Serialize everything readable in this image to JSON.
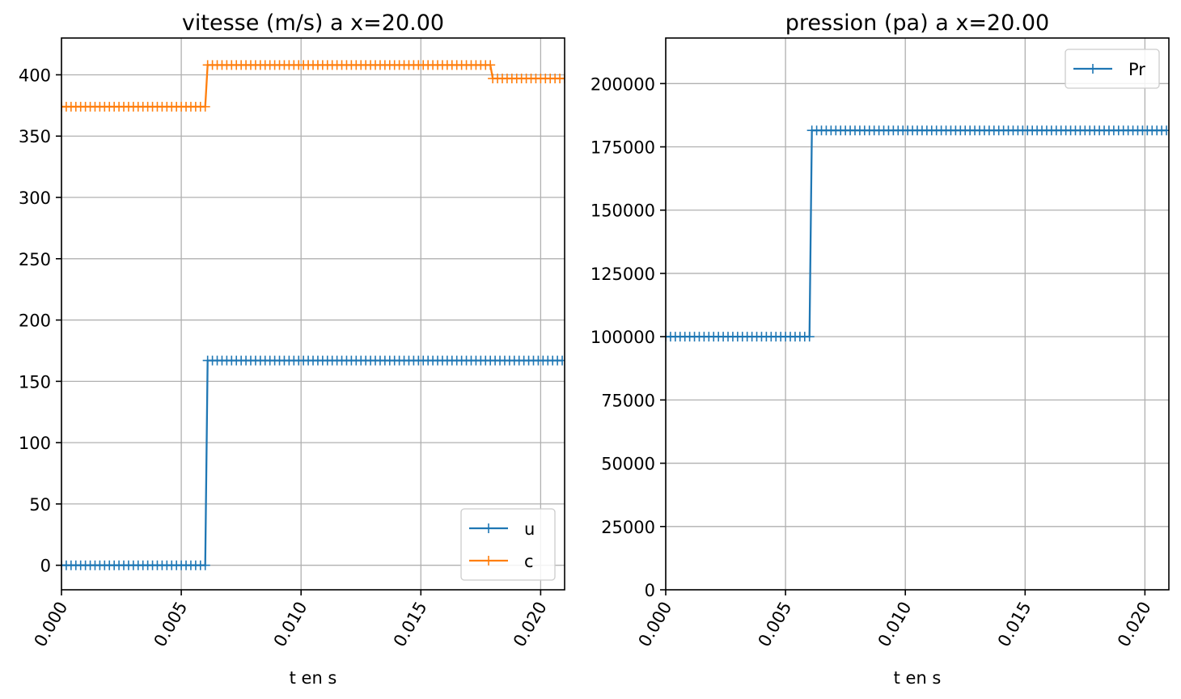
{
  "colors": {
    "u": "#1f77b4",
    "c": "#ff7f0e",
    "Pr": "#1f77b4",
    "grid": "#b0b0b0"
  },
  "chart_data": [
    {
      "type": "line",
      "title": "vitesse (m/s) a x=20.00",
      "xlabel": "t en s",
      "ylabel": "",
      "xlim": [
        0,
        0.021
      ],
      "ylim": [
        -20,
        430
      ],
      "xticks": [
        "0.000",
        "0.005",
        "0.010",
        "0.015",
        "0.020"
      ],
      "xtick_values": [
        0,
        0.005,
        0.01,
        0.015,
        0.02
      ],
      "yticks": [
        "0",
        "50",
        "100",
        "150",
        "200",
        "250",
        "300",
        "350",
        "400"
      ],
      "ytick_values": [
        0,
        50,
        100,
        150,
        200,
        250,
        300,
        350,
        400
      ],
      "grid": true,
      "legend": "lower-right",
      "marker": "+",
      "series": [
        {
          "name": "u",
          "color_key": "u",
          "segments": [
            {
              "t_start": 0.0,
              "t_end": 0.006,
              "value": 0
            },
            {
              "t_start": 0.0061,
              "t_end": 0.021,
              "value": 167
            }
          ]
        },
        {
          "name": "c",
          "color_key": "c",
          "segments": [
            {
              "t_start": 0.0,
              "t_end": 0.006,
              "value": 374
            },
            {
              "t_start": 0.0061,
              "t_end": 0.0179,
              "value": 408
            },
            {
              "t_start": 0.018,
              "t_end": 0.021,
              "value": 397
            }
          ]
        }
      ]
    },
    {
      "type": "line",
      "title": "pression (pa) a x=20.00",
      "xlabel": "t en s",
      "ylabel": "",
      "xlim": [
        0,
        0.021
      ],
      "ylim": [
        0,
        218000
      ],
      "xticks": [
        "0.000",
        "0.005",
        "0.010",
        "0.015",
        "0.020"
      ],
      "xtick_values": [
        0,
        0.005,
        0.01,
        0.015,
        0.02
      ],
      "yticks": [
        "0",
        "25000",
        "50000",
        "75000",
        "100000",
        "125000",
        "150000",
        "175000",
        "200000"
      ],
      "ytick_values": [
        0,
        25000,
        50000,
        75000,
        100000,
        125000,
        150000,
        175000,
        200000
      ],
      "grid": true,
      "legend": "top-right",
      "marker": "+",
      "series": [
        {
          "name": "Pr",
          "color_key": "Pr",
          "segments": [
            {
              "t_start": 0.0,
              "t_end": 0.006,
              "value": 100000
            },
            {
              "t_start": 0.0061,
              "t_end": 0.021,
              "value": 181500
            }
          ]
        }
      ]
    }
  ]
}
